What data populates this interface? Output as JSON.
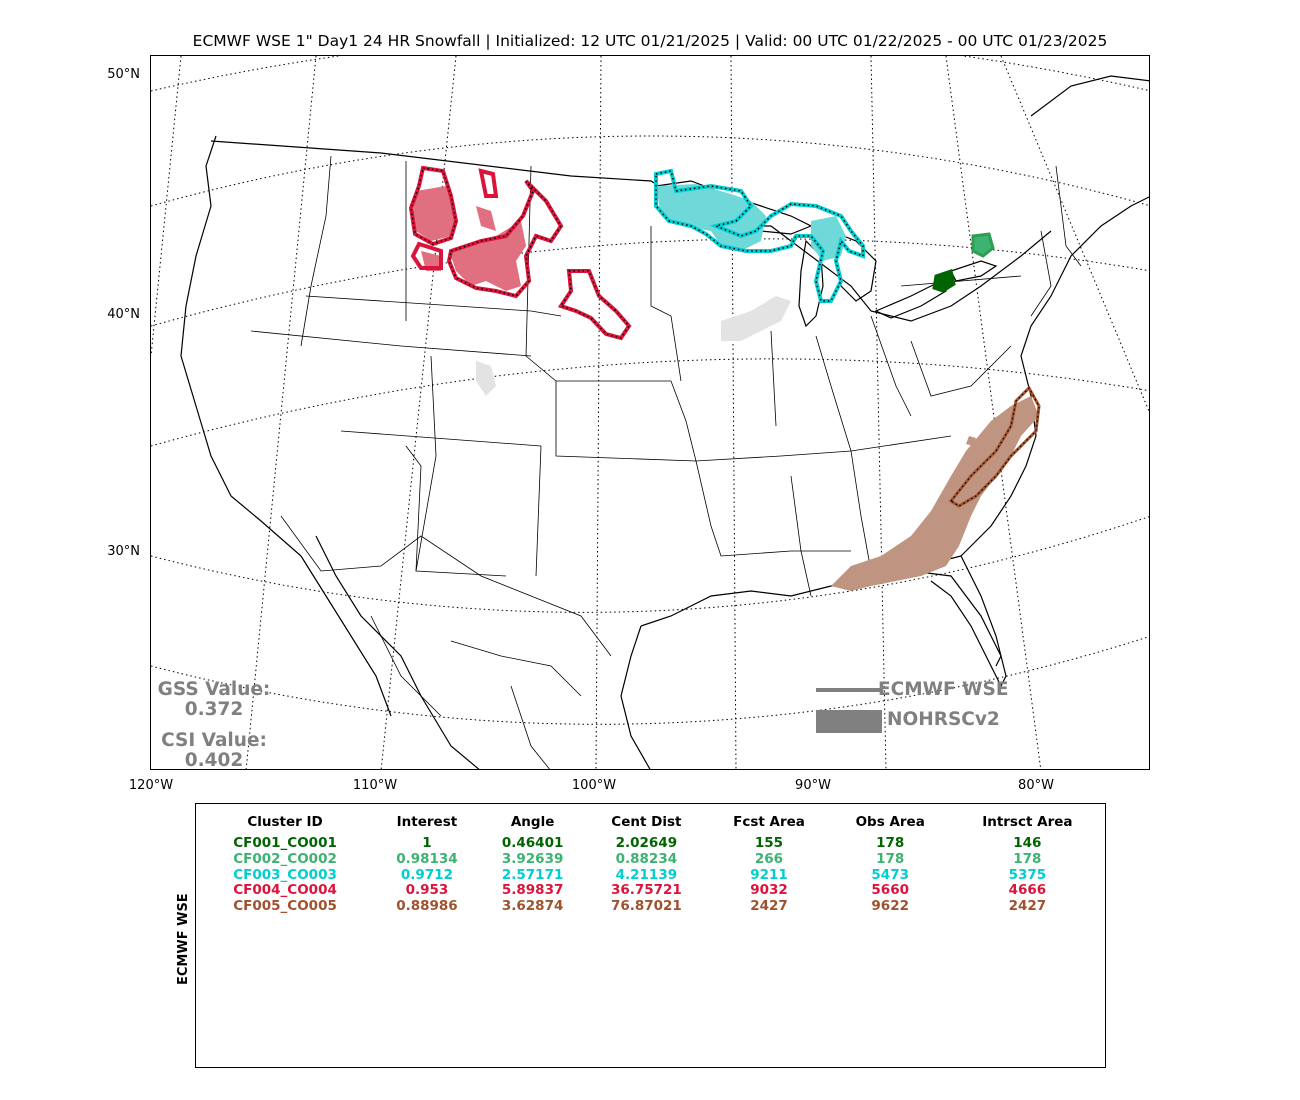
{
  "title": "ECMWF WSE 1\" Day1 24 HR Snowfall | Initialized: 12 UTC 01/21/2025 | Valid: 00 UTC 01/22/2025 - 00 UTC 01/23/2025",
  "map": {
    "lat_labels": [
      "50°N",
      "40°N",
      "30°N"
    ],
    "lon_labels": [
      "120°W",
      "110°W",
      "100°W",
      "90°W",
      "80°W"
    ],
    "gss_label": "GSS Value:",
    "gss_value": "0.372",
    "csi_label": "CSI Value:",
    "csi_value": "0.402",
    "legend": {
      "line_label": "ECMWF WSE",
      "patch_label": "NOHRSCv2",
      "color": "#808080"
    },
    "clusters": [
      {
        "id": "CF001_CO001",
        "color": "#006400",
        "fill": "#006400",
        "region": "Lake Erie shore (NW Pennsylvania / W New York)"
      },
      {
        "id": "CF002_CO002",
        "color": "#2e9e52",
        "fill": "#3cb371",
        "region": "Central New York"
      },
      {
        "id": "CF003_CO003",
        "color": "#00ced1",
        "fill": "#40d0d0",
        "region": "Upper Midwest / Great Lakes"
      },
      {
        "id": "CF004_CO004",
        "color": "#dc143c",
        "fill": "#e06070",
        "region": "Montana / Wyoming / South Dakota"
      },
      {
        "id": "CF005_CO005",
        "color": "#a0522d",
        "fill": "#b5836a",
        "region": "Southeast / Mid-Atlantic coast"
      }
    ]
  },
  "table": {
    "side_label": "ECMWF WSE",
    "columns": [
      "Cluster ID",
      "Interest",
      "Angle",
      "Cent Dist",
      "Fcst Area",
      "Obs Area",
      "Intrsct Area"
    ],
    "rows": [
      {
        "color": "#006400",
        "cells": [
          "CF001_CO001",
          "1",
          "0.46401",
          "2.02649",
          "155",
          "178",
          "146"
        ]
      },
      {
        "color": "#3cb371",
        "cells": [
          "CF002_CO002",
          "0.98134",
          "3.92639",
          "0.88234",
          "266",
          "178",
          "178"
        ]
      },
      {
        "color": "#00ced1",
        "cells": [
          "CF003_CO003",
          "0.9712",
          "2.57171",
          "4.21139",
          "9211",
          "5473",
          "5375"
        ]
      },
      {
        "color": "#dc143c",
        "cells": [
          "CF004_CO004",
          "0.953",
          "5.89837",
          "36.75721",
          "9032",
          "5660",
          "4666"
        ]
      },
      {
        "color": "#a0522d",
        "cells": [
          "CF005_CO005",
          "0.88986",
          "3.62874",
          "76.87021",
          "2427",
          "9622",
          "2427"
        ]
      }
    ]
  }
}
